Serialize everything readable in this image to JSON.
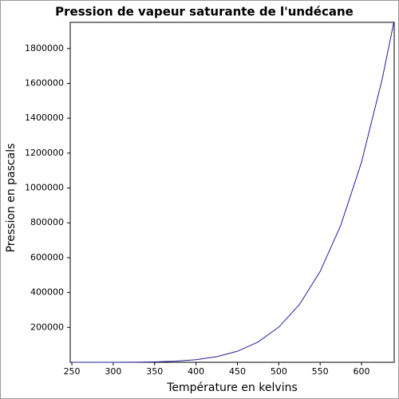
{
  "chart_data": {
    "type": "line",
    "title": "Pression de vapeur saturante de l'undécane",
    "x_label": "Température en kelvins",
    "y_label": "Pression en pascals",
    "x": [
      250,
      275,
      300,
      325,
      350,
      375,
      400,
      425,
      450,
      475,
      500,
      525,
      550,
      575,
      600,
      625,
      639
    ],
    "series": [
      {
        "name": "undécane",
        "color": "#1f1f99",
        "values": [
          6,
          40,
          193,
          734,
          2309,
          6222,
          14870,
          32000,
          63390,
          116600,
          201700,
          331700,
          521000,
          787000,
          1148000,
          1625000,
          1950000
        ]
      }
    ],
    "xlim": [
      248,
      639.5
    ],
    "ylim": [
      0,
      1950000
    ],
    "xticks": [
      250,
      300,
      350,
      400,
      450,
      500,
      550,
      600
    ],
    "yticks": [
      200000,
      400000,
      600000,
      800000,
      1000000,
      1200000,
      1400000,
      1600000,
      1800000
    ]
  }
}
